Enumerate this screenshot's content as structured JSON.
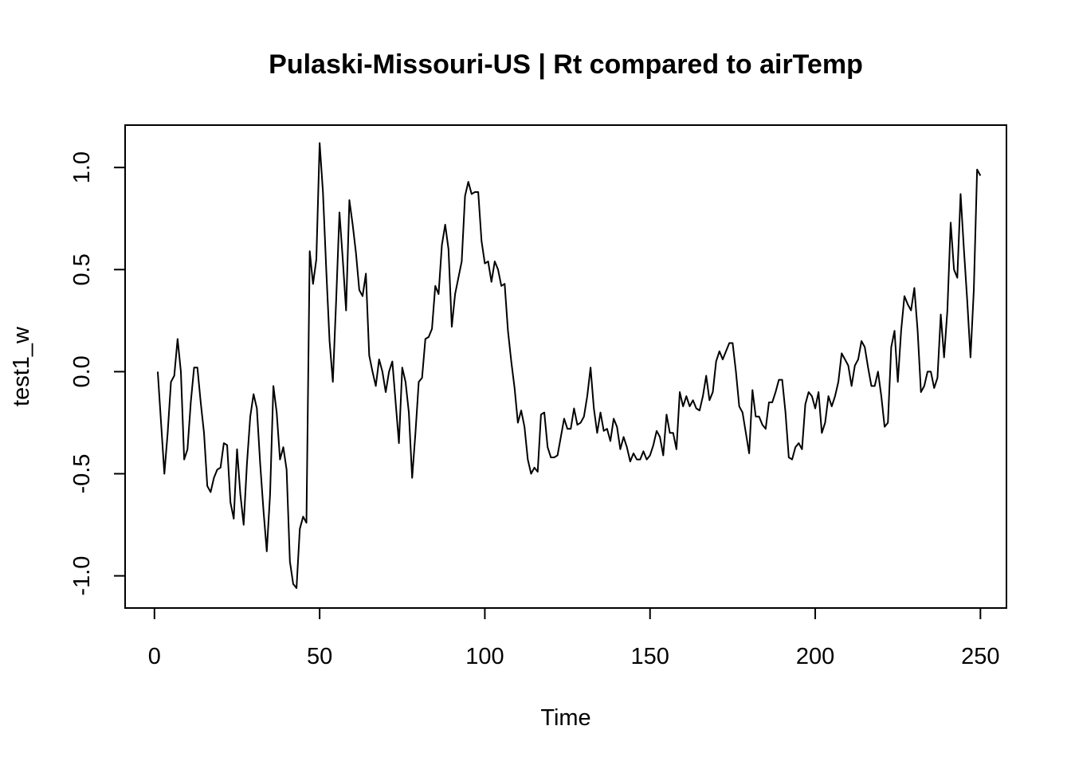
{
  "chart_data": {
    "type": "line",
    "title": "Pulaski-Missouri-US | Rt compared to airTemp",
    "xlabel": "Time",
    "ylabel": "test1_w",
    "xlim": [
      1,
      248
    ],
    "ylim": [
      -1.07,
      1.12
    ],
    "xticks": [
      0,
      50,
      100,
      150,
      200,
      250
    ],
    "yticks": [
      -1.0,
      -0.5,
      0.0,
      0.5,
      1.0
    ],
    "xtick_labels": [
      "0",
      "50",
      "100",
      "150",
      "200",
      "250"
    ],
    "ytick_labels": [
      "-1.0",
      "-0.5",
      "0.0",
      "0.5",
      "1.0"
    ],
    "grid": false,
    "legend": "none",
    "line_color": "#000000",
    "series": [
      {
        "x_start": 1,
        "x_step": 1,
        "values": [
          0.0,
          -0.25,
          -0.5,
          -0.3,
          -0.05,
          -0.02,
          0.16,
          0.0,
          -0.43,
          -0.38,
          -0.15,
          0.02,
          0.02,
          -0.15,
          -0.3,
          -0.56,
          -0.59,
          -0.52,
          -0.48,
          -0.47,
          -0.35,
          -0.36,
          -0.64,
          -0.72,
          -0.38,
          -0.6,
          -0.75,
          -0.45,
          -0.22,
          -0.11,
          -0.18,
          -0.45,
          -0.68,
          -0.88,
          -0.6,
          -0.07,
          -0.2,
          -0.43,
          -0.37,
          -0.48,
          -0.93,
          -1.04,
          -1.06,
          -0.77,
          -0.71,
          -0.74,
          0.59,
          0.43,
          0.55,
          1.12,
          0.88,
          0.5,
          0.15,
          -0.05,
          0.35,
          0.78,
          0.55,
          0.3,
          0.84,
          0.72,
          0.58,
          0.4,
          0.37,
          0.48,
          0.08,
          0.0,
          -0.07,
          0.06,
          0.0,
          -0.1,
          0.0,
          0.05,
          -0.15,
          -0.35,
          0.02,
          -0.05,
          -0.2,
          -0.52,
          -0.3,
          -0.05,
          -0.03,
          0.16,
          0.17,
          0.21,
          0.42,
          0.38,
          0.62,
          0.72,
          0.6,
          0.22,
          0.38,
          0.46,
          0.54,
          0.86,
          0.93,
          0.87,
          0.88,
          0.88,
          0.64,
          0.53,
          0.54,
          0.44,
          0.54,
          0.5,
          0.42,
          0.43,
          0.2,
          0.05,
          -0.08,
          -0.25,
          -0.19,
          -0.27,
          -0.43,
          -0.5,
          -0.47,
          -0.49,
          -0.21,
          -0.2,
          -0.37,
          -0.42,
          -0.42,
          -0.41,
          -0.32,
          -0.23,
          -0.28,
          -0.28,
          -0.18,
          -0.26,
          -0.25,
          -0.22,
          -0.12,
          0.02,
          -0.18,
          -0.3,
          -0.2,
          -0.29,
          -0.28,
          -0.34,
          -0.23,
          -0.27,
          -0.38,
          -0.32,
          -0.37,
          -0.44,
          -0.4,
          -0.43,
          -0.43,
          -0.39,
          -0.43,
          -0.41,
          -0.36,
          -0.29,
          -0.32,
          -0.41,
          -0.21,
          -0.3,
          -0.3,
          -0.38,
          -0.1,
          -0.17,
          -0.12,
          -0.17,
          -0.14,
          -0.18,
          -0.19,
          -0.12,
          -0.02,
          -0.14,
          -0.1,
          0.05,
          0.1,
          0.06,
          0.1,
          0.14,
          0.14,
          0.0,
          -0.17,
          -0.2,
          -0.3,
          -0.4,
          -0.09,
          -0.22,
          -0.22,
          -0.26,
          -0.28,
          -0.15,
          -0.15,
          -0.1,
          -0.04,
          -0.04,
          -0.2,
          -0.42,
          -0.43,
          -0.37,
          -0.35,
          -0.38,
          -0.16,
          -0.1,
          -0.12,
          -0.18,
          -0.1,
          -0.3,
          -0.25,
          -0.12,
          -0.17,
          -0.12,
          -0.05,
          0.09,
          0.06,
          0.03,
          -0.07,
          0.03,
          0.06,
          0.15,
          0.12,
          0.02,
          -0.07,
          -0.07,
          0.0,
          -0.12,
          -0.27,
          -0.25,
          0.12,
          0.2,
          -0.05,
          0.2,
          0.37,
          0.33,
          0.3,
          0.41,
          0.2,
          -0.1,
          -0.07,
          0.0,
          0.0,
          -0.08,
          -0.03,
          0.28,
          0.07,
          0.3,
          0.73,
          0.5,
          0.46,
          0.87,
          0.6,
          0.35,
          0.07,
          0.4,
          0.99,
          0.96
        ]
      }
    ]
  }
}
